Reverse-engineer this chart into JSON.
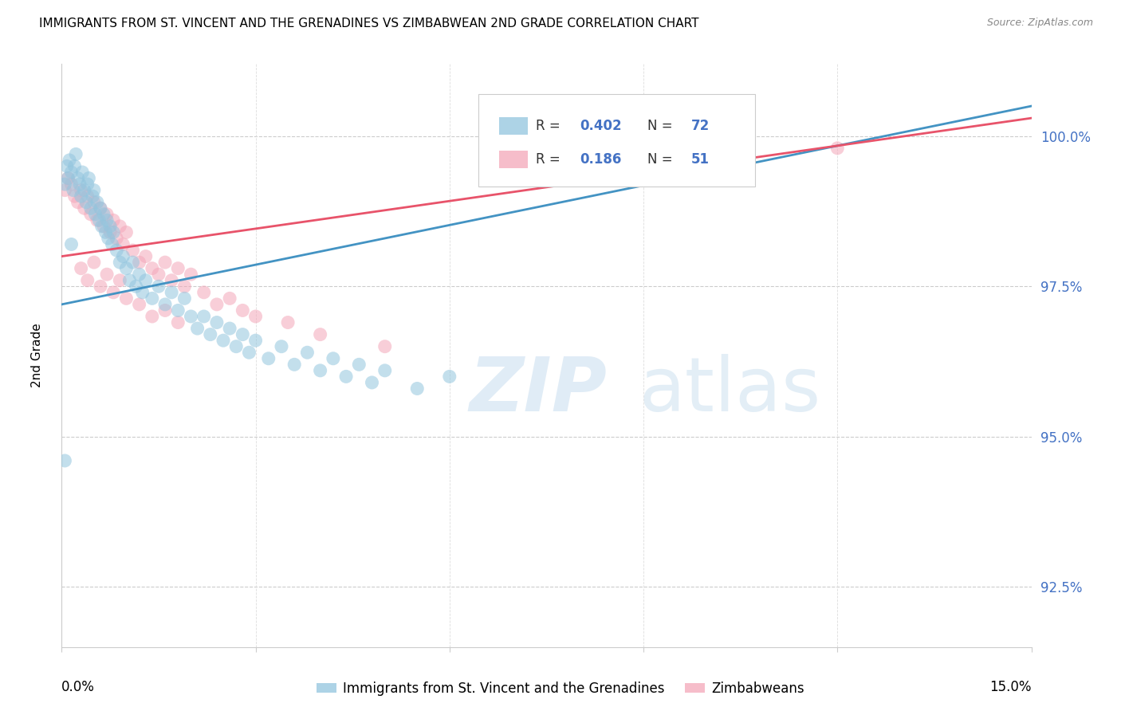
{
  "title": "IMMIGRANTS FROM ST. VINCENT AND THE GRENADINES VS ZIMBABWEAN 2ND GRADE CORRELATION CHART",
  "source": "Source: ZipAtlas.com",
  "ylabel": "2nd Grade",
  "ytick_labels": [
    "92.5%",
    "95.0%",
    "97.5%",
    "100.0%"
  ],
  "ytick_values": [
    92.5,
    95.0,
    97.5,
    100.0
  ],
  "xmin": 0.0,
  "xmax": 15.0,
  "ymin": 91.5,
  "ymax": 101.2,
  "blue_R": 0.402,
  "blue_N": 72,
  "pink_R": 0.186,
  "pink_N": 51,
  "legend_label_blue": "Immigrants from St. Vincent and the Grenadines",
  "legend_label_pink": "Zimbabweans",
  "blue_color": "#92c5de",
  "pink_color": "#f4a7b9",
  "blue_line_color": "#4393c3",
  "pink_line_color": "#e8536a",
  "blue_x": [
    0.05,
    0.08,
    0.1,
    0.12,
    0.15,
    0.18,
    0.2,
    0.22,
    0.25,
    0.28,
    0.3,
    0.32,
    0.35,
    0.38,
    0.4,
    0.42,
    0.45,
    0.48,
    0.5,
    0.52,
    0.55,
    0.58,
    0.6,
    0.62,
    0.65,
    0.68,
    0.7,
    0.72,
    0.75,
    0.78,
    0.8,
    0.85,
    0.9,
    0.95,
    1.0,
    1.05,
    1.1,
    1.15,
    1.2,
    1.25,
    1.3,
    1.4,
    1.5,
    1.6,
    1.7,
    1.8,
    1.9,
    2.0,
    2.1,
    2.2,
    2.3,
    2.4,
    2.5,
    2.6,
    2.7,
    2.8,
    2.9,
    3.0,
    3.2,
    3.4,
    3.6,
    3.8,
    4.0,
    4.2,
    4.4,
    4.6,
    4.8,
    5.0,
    5.5,
    6.0,
    0.15,
    0.05
  ],
  "blue_y": [
    99.2,
    99.5,
    99.3,
    99.6,
    99.4,
    99.1,
    99.5,
    99.7,
    99.3,
    99.2,
    99.0,
    99.4,
    99.1,
    98.9,
    99.2,
    99.3,
    98.8,
    99.0,
    99.1,
    98.7,
    98.9,
    98.6,
    98.8,
    98.5,
    98.7,
    98.4,
    98.6,
    98.3,
    98.5,
    98.2,
    98.4,
    98.1,
    97.9,
    98.0,
    97.8,
    97.6,
    97.9,
    97.5,
    97.7,
    97.4,
    97.6,
    97.3,
    97.5,
    97.2,
    97.4,
    97.1,
    97.3,
    97.0,
    96.8,
    97.0,
    96.7,
    96.9,
    96.6,
    96.8,
    96.5,
    96.7,
    96.4,
    96.6,
    96.3,
    96.5,
    96.2,
    96.4,
    96.1,
    96.3,
    96.0,
    96.2,
    95.9,
    96.1,
    95.8,
    96.0,
    98.2,
    94.6
  ],
  "pink_x": [
    0.05,
    0.1,
    0.15,
    0.2,
    0.25,
    0.3,
    0.35,
    0.4,
    0.45,
    0.5,
    0.55,
    0.6,
    0.65,
    0.7,
    0.75,
    0.8,
    0.85,
    0.9,
    0.95,
    1.0,
    1.1,
    1.2,
    1.3,
    1.4,
    1.5,
    1.6,
    1.7,
    1.8,
    1.9,
    2.0,
    2.2,
    2.4,
    2.6,
    2.8,
    3.0,
    3.5,
    4.0,
    5.0,
    0.3,
    0.4,
    0.5,
    0.6,
    0.7,
    0.8,
    0.9,
    1.0,
    1.2,
    1.4,
    1.6,
    1.8,
    12.0
  ],
  "pink_y": [
    99.1,
    99.3,
    99.2,
    99.0,
    98.9,
    99.1,
    98.8,
    99.0,
    98.7,
    98.9,
    98.6,
    98.8,
    98.5,
    98.7,
    98.4,
    98.6,
    98.3,
    98.5,
    98.2,
    98.4,
    98.1,
    97.9,
    98.0,
    97.8,
    97.7,
    97.9,
    97.6,
    97.8,
    97.5,
    97.7,
    97.4,
    97.2,
    97.3,
    97.1,
    97.0,
    96.9,
    96.7,
    96.5,
    97.8,
    97.6,
    97.9,
    97.5,
    97.7,
    97.4,
    97.6,
    97.3,
    97.2,
    97.0,
    97.1,
    96.9,
    99.8
  ],
  "trend_blue_x0": 0.0,
  "trend_blue_y0": 97.2,
  "trend_blue_x1": 15.0,
  "trend_blue_y1": 100.5,
  "trend_pink_x0": 0.0,
  "trend_pink_y0": 98.0,
  "trend_pink_x1": 15.0,
  "trend_pink_y1": 100.3
}
